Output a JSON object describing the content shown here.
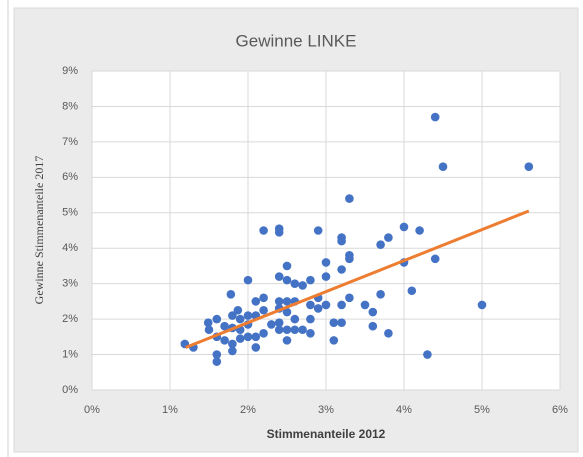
{
  "chart_data": {
    "type": "scatter",
    "title": "Gewinne LINKE",
    "x_label": "Stimmenanteile 2012",
    "y_label": "Gewinne Stimmenanteile 2017",
    "grid": true,
    "color": "#4472c4",
    "xlim": [
      0,
      6
    ],
    "ylim": [
      0,
      9
    ],
    "xticks": [
      {
        "value": 0,
        "label": "0%"
      },
      {
        "value": 1,
        "label": "1%"
      },
      {
        "value": 2,
        "label": "2%"
      },
      {
        "value": 3,
        "label": "3%"
      },
      {
        "value": 4,
        "label": "4%"
      },
      {
        "value": 5,
        "label": "5%"
      },
      {
        "value": 6,
        "label": "6%"
      }
    ],
    "yticks": [
      {
        "value": 0,
        "label": "0%"
      },
      {
        "value": 1,
        "label": "1%"
      },
      {
        "value": 2,
        "label": "2%"
      },
      {
        "value": 3,
        "label": "3%"
      },
      {
        "value": 4,
        "label": "4%"
      },
      {
        "value": 5,
        "label": "5%"
      },
      {
        "value": 6,
        "label": "6%"
      },
      {
        "value": 7,
        "label": "7%"
      },
      {
        "value": 8,
        "label": "8%"
      },
      {
        "value": 9,
        "label": "9%"
      }
    ],
    "x": [
      1.19,
      1.3,
      1.49,
      1.5,
      1.6,
      1.6,
      1.6,
      1.6,
      1.7,
      1.7,
      1.78,
      1.8,
      1.8,
      1.8,
      1.8,
      1.87,
      1.9,
      1.9,
      1.9,
      2.0,
      2.0,
      2.0,
      2.0,
      2.1,
      2.1,
      2.1,
      2.1,
      2.2,
      2.2,
      2.2,
      2.2,
      2.3,
      2.4,
      2.4,
      2.4,
      2.4,
      2.4,
      2.4,
      2.4,
      2.5,
      2.5,
      2.5,
      2.5,
      2.5,
      2.5,
      2.6,
      2.6,
      2.6,
      2.6,
      2.7,
      2.7,
      2.8,
      2.8,
      2.8,
      2.8,
      2.9,
      2.9,
      2.9,
      3.0,
      3.0,
      3.0,
      3.1,
      3.1,
      3.2,
      3.2,
      3.2,
      3.2,
      3.2,
      3.3,
      3.3,
      3.3,
      3.3,
      3.5,
      3.6,
      3.6,
      3.7,
      3.7,
      3.8,
      3.8,
      4.0,
      4.0,
      4.1,
      4.2,
      4.3,
      4.4,
      4.4,
      4.5,
      5.0,
      5.6
    ],
    "values": [
      1.3,
      1.2,
      1.9,
      1.7,
      2.0,
      1.5,
      1.0,
      0.8,
      1.4,
      1.8,
      2.7,
      2.1,
      1.75,
      1.3,
      1.1,
      2.25,
      2.0,
      1.7,
      1.45,
      3.1,
      2.1,
      1.85,
      1.5,
      2.5,
      2.1,
      1.5,
      1.2,
      2.6,
      2.25,
      4.5,
      1.6,
      1.85,
      4.45,
      4.55,
      3.2,
      2.5,
      2.3,
      1.9,
      1.7,
      3.5,
      3.1,
      2.5,
      2.2,
      1.7,
      1.4,
      3.0,
      2.5,
      2.0,
      1.7,
      2.95,
      1.7,
      3.1,
      2.4,
      2.0,
      1.6,
      4.5,
      2.6,
      2.3,
      3.6,
      3.2,
      2.4,
      1.9,
      1.4,
      4.3,
      4.2,
      3.4,
      2.4,
      1.9,
      5.4,
      3.8,
      3.7,
      2.6,
      2.4,
      2.2,
      1.8,
      4.1,
      2.7,
      4.3,
      1.6,
      4.6,
      3.6,
      2.8,
      4.5,
      1.0,
      7.7,
      3.7,
      6.3,
      2.4,
      6.3
    ],
    "trendline": {
      "color": "#ed7d31",
      "x": [
        1.2,
        5.6
      ],
      "values": [
        1.2,
        5.05
      ]
    }
  }
}
